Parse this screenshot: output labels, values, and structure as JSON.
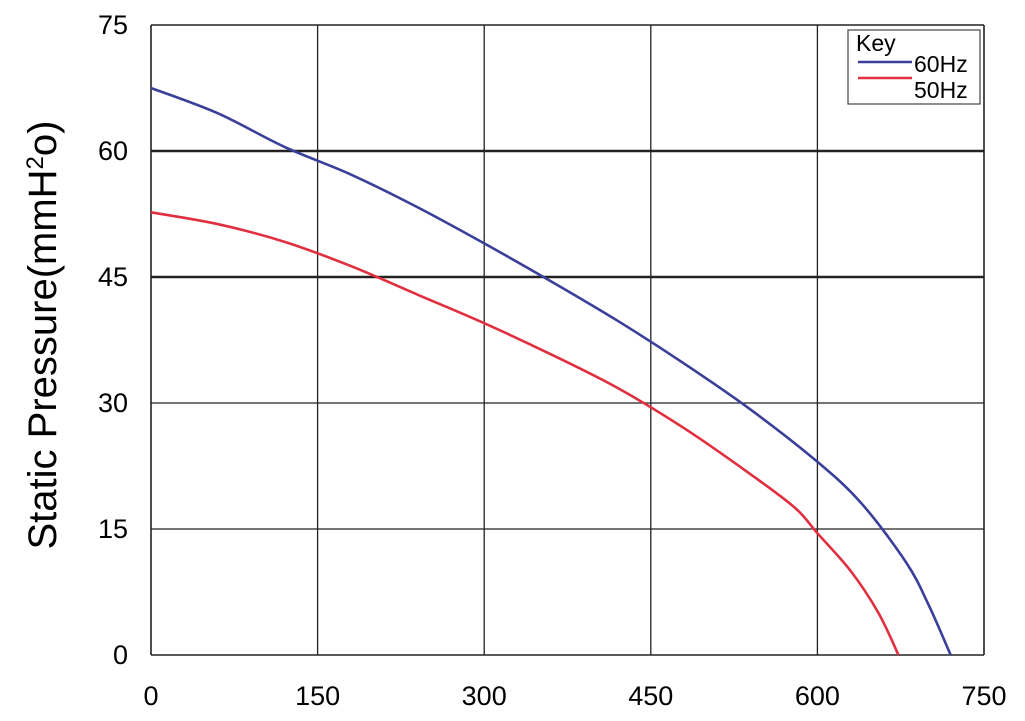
{
  "chart_data": {
    "type": "line",
    "title": "",
    "xlabel": "",
    "ylabel": "Static Pressure(mmH²o)",
    "ylabel_parts": {
      "main": "Static Pressure(mmH",
      "sup": "2",
      "tail": "o)"
    },
    "xlim": [
      0,
      750
    ],
    "ylim": [
      0,
      75
    ],
    "x_ticks": [
      0,
      150,
      300,
      450,
      600,
      750
    ],
    "y_ticks": [
      0,
      15,
      30,
      45,
      60,
      75
    ],
    "grid": true,
    "legend": {
      "title": "Key",
      "placement": "top-right"
    },
    "series": [
      {
        "name": "60Hz",
        "color": "#3a3f9a",
        "points": [
          [
            0,
            67.5
          ],
          [
            60,
            64.5
          ],
          [
            120,
            60.5
          ],
          [
            180,
            57.2
          ],
          [
            240,
            53.3
          ],
          [
            300,
            49.0
          ],
          [
            360,
            44.5
          ],
          [
            420,
            39.8
          ],
          [
            480,
            34.7
          ],
          [
            540,
            29.2
          ],
          [
            600,
            23.0
          ],
          [
            640,
            18.0
          ],
          [
            680,
            11.0
          ],
          [
            700,
            6.0
          ],
          [
            720,
            0.0
          ]
        ]
      },
      {
        "name": "50Hz",
        "color": "#e03040",
        "points": [
          [
            0,
            52.7
          ],
          [
            60,
            51.3
          ],
          [
            120,
            49.2
          ],
          [
            180,
            46.3
          ],
          [
            240,
            42.9
          ],
          [
            300,
            39.5
          ],
          [
            360,
            35.8
          ],
          [
            420,
            31.8
          ],
          [
            480,
            27.0
          ],
          [
            540,
            21.5
          ],
          [
            580,
            17.5
          ],
          [
            600,
            14.5
          ],
          [
            630,
            10.0
          ],
          [
            655,
            5.0
          ],
          [
            673,
            0.0
          ]
        ]
      }
    ]
  }
}
